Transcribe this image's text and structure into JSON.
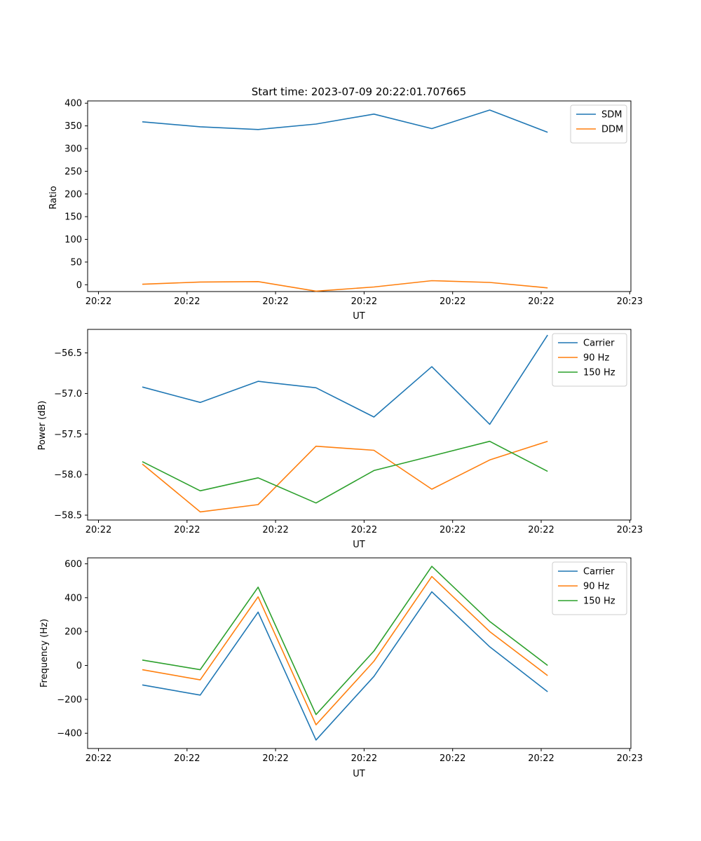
{
  "figure": {
    "suptitle": "Start time: 2023-07-09 20:22:01.707665"
  },
  "chart_data": [
    {
      "type": "line",
      "xlabel": "UT",
      "ylabel": "Ratio",
      "x_tick_labels": [
        "20:22",
        "20:22",
        "20:22",
        "20:22",
        "20:22",
        "20:22",
        "20:23"
      ],
      "y_ticks": [
        0,
        50,
        100,
        150,
        200,
        250,
        300,
        350,
        400
      ],
      "ylim": [
        -15,
        405
      ],
      "legend_loc": "upper right",
      "series": [
        {
          "name": "SDM",
          "color": "#1f77b4",
          "values": [
            359,
            348,
            342,
            354,
            376,
            344,
            385,
            336
          ]
        },
        {
          "name": "DDM",
          "color": "#ff7f0e",
          "values": [
            1,
            6,
            7,
            -14,
            -5,
            9,
            5,
            -7
          ]
        }
      ]
    },
    {
      "type": "line",
      "xlabel": "UT",
      "ylabel": "Power (dB)",
      "x_tick_labels": [
        "20:22",
        "20:22",
        "20:22",
        "20:22",
        "20:22",
        "20:22",
        "20:23"
      ],
      "y_ticks": [
        -56.5,
        -57.0,
        -57.5,
        -58.0,
        -58.5
      ],
      "y_tick_labels": [
        "−56.5",
        "−57.0",
        "−57.5",
        "−58.0",
        "−58.5"
      ],
      "ylim": [
        -58.56,
        -56.21
      ],
      "legend_loc": "upper right",
      "series": [
        {
          "name": "Carrier",
          "color": "#1f77b4",
          "values": [
            -56.92,
            -57.11,
            -56.85,
            -56.93,
            -57.29,
            -56.67,
            -57.38,
            -56.28
          ]
        },
        {
          "name": "90 Hz",
          "color": "#ff7f0e",
          "values": [
            -57.87,
            -58.46,
            -58.37,
            -57.65,
            -57.7,
            -58.18,
            -57.82,
            -57.59
          ]
        },
        {
          "name": "150 Hz",
          "color": "#2ca02c",
          "values": [
            -57.84,
            -58.2,
            -58.04,
            -58.35,
            -57.95,
            -57.77,
            -57.59,
            -57.96
          ]
        }
      ]
    },
    {
      "type": "line",
      "xlabel": "UT",
      "ylabel": "Frequency (Hz)",
      "x_tick_labels": [
        "20:22",
        "20:22",
        "20:22",
        "20:22",
        "20:22",
        "20:22",
        "20:23"
      ],
      "y_ticks": [
        600,
        400,
        200,
        0,
        -200,
        -400
      ],
      "y_tick_labels": [
        "600",
        "400",
        "200",
        "0",
        "−200",
        "−400"
      ],
      "ylim": [
        -490,
        635
      ],
      "legend_loc": "upper right",
      "series": [
        {
          "name": "Carrier",
          "color": "#1f77b4",
          "values": [
            -115,
            -175,
            315,
            -440,
            -65,
            435,
            110,
            -155
          ]
        },
        {
          "name": "90 Hz",
          "color": "#ff7f0e",
          "values": [
            -25,
            -85,
            405,
            -350,
            25,
            525,
            200,
            -60
          ]
        },
        {
          "name": "150 Hz",
          "color": "#2ca02c",
          "values": [
            32,
            -25,
            462,
            -290,
            85,
            585,
            260,
            0
          ]
        }
      ]
    }
  ]
}
